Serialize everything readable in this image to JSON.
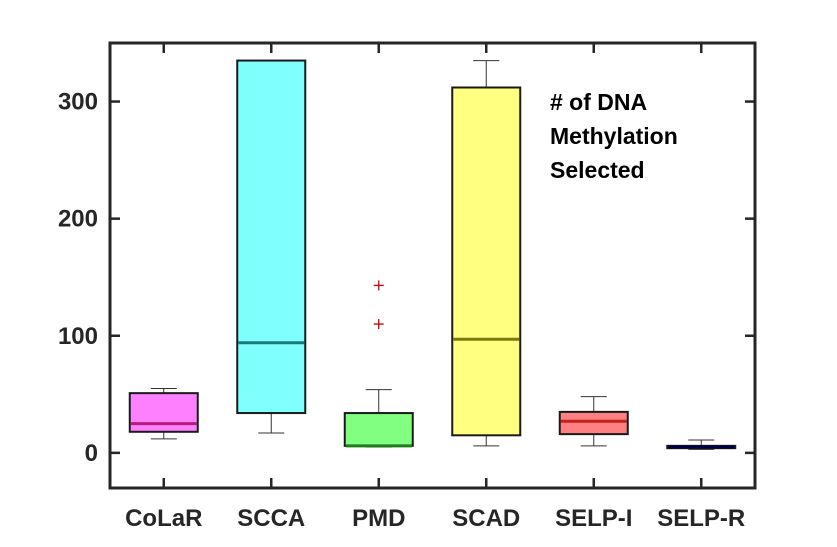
{
  "chart_data": {
    "type": "boxplot",
    "title": "",
    "xlabel": "",
    "ylabel": "",
    "ylim": [
      -30,
      350
    ],
    "yticks": [
      0,
      100,
      200,
      300
    ],
    "ytick_labels": [
      "0",
      "100",
      "200",
      "300"
    ],
    "grid": false,
    "legend": null,
    "annotation": {
      "lines": [
        "# of DNA",
        "Methylation",
        "Selected"
      ],
      "placement": "top-right"
    },
    "categories": [
      "CoLaR",
      "SCCA",
      "PMD",
      "SCAD",
      "SELP-I",
      "SELP-R"
    ],
    "boxes": [
      {
        "name": "CoLaR",
        "color": "#ff80ff",
        "median_color": "#b0207a",
        "whisker_low": 12,
        "q1": 18,
        "median": 25,
        "q3": 51,
        "whisker_high": 55,
        "outliers": []
      },
      {
        "name": "SCCA",
        "color": "#80ffff",
        "median_color": "#1a7a7a",
        "whisker_low": 17,
        "q1": 34,
        "median": 94,
        "q3": 335,
        "whisker_high": 335,
        "outliers": []
      },
      {
        "name": "PMD",
        "color": "#80ff80",
        "median_color": "#207a20",
        "whisker_low": 5,
        "q1": 6,
        "median": 6,
        "q3": 34,
        "whisker_high": 54,
        "outliers": [
          110,
          143
        ]
      },
      {
        "name": "SCAD",
        "color": "#ffff80",
        "median_color": "#7a7a10",
        "whisker_low": 6,
        "q1": 15,
        "median": 97,
        "q3": 312,
        "whisker_high": 335,
        "outliers": []
      },
      {
        "name": "SELP-I",
        "color": "#ff8080",
        "median_color": "#c02020",
        "whisker_low": 6,
        "q1": 16,
        "median": 27,
        "q3": 35,
        "whisker_high": 48,
        "outliers": []
      },
      {
        "name": "SELP-R",
        "color": "#5060b0",
        "median_color": "#000040",
        "whisker_low": 3,
        "q1": 4,
        "median": 5,
        "q3": 6,
        "whisker_high": 11,
        "outliers": []
      }
    ],
    "outlier_color": "#cc0000"
  }
}
